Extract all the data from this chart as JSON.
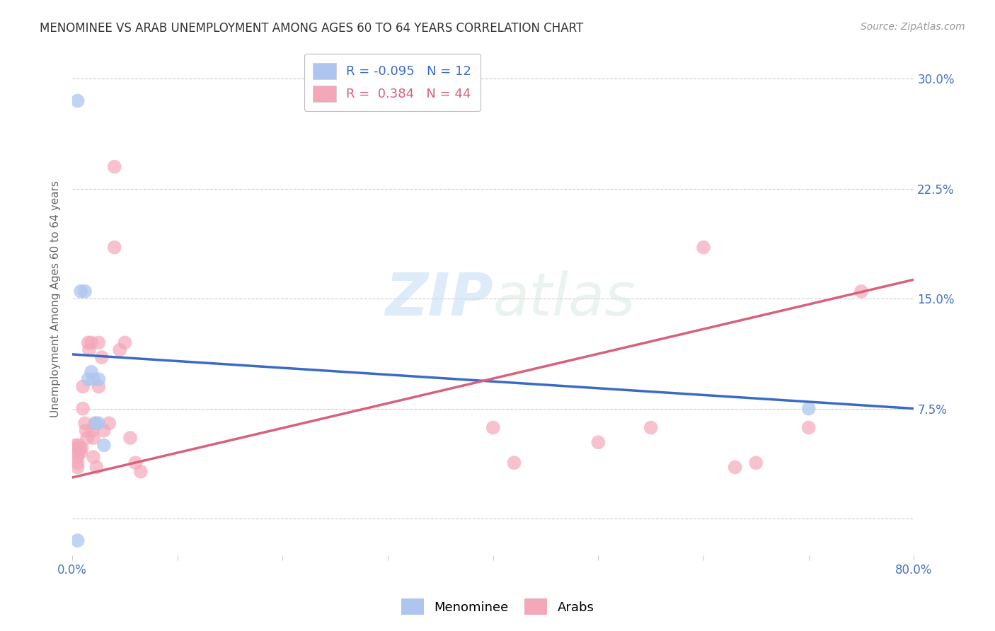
{
  "title": "MENOMINEE VS ARAB UNEMPLOYMENT AMONG AGES 60 TO 64 YEARS CORRELATION CHART",
  "source": "Source: ZipAtlas.com",
  "ylabel": "Unemployment Among Ages 60 to 64 years",
  "xlim": [
    0.0,
    0.8
  ],
  "ylim": [
    -0.025,
    0.325
  ],
  "menominee_R": "-0.095",
  "menominee_N": "12",
  "arab_R": "0.384",
  "arab_N": "44",
  "menominee_color": "#aec6ef",
  "arab_color": "#f4a7b9",
  "menominee_line_color": "#3a6bc4",
  "arab_line_color": "#d9607a",
  "watermark_zip": "ZIP",
  "watermark_atlas": "atlas",
  "menominee_points_x": [
    0.005,
    0.008,
    0.012,
    0.015,
    0.018,
    0.02,
    0.022,
    0.025,
    0.025,
    0.03,
    0.7,
    0.005
  ],
  "menominee_points_y": [
    0.285,
    0.155,
    0.155,
    0.095,
    0.1,
    0.095,
    0.065,
    0.065,
    0.095,
    0.05,
    0.075,
    -0.015
  ],
  "arab_points_x": [
    0.003,
    0.004,
    0.005,
    0.005,
    0.005,
    0.005,
    0.006,
    0.007,
    0.008,
    0.009,
    0.01,
    0.01,
    0.012,
    0.013,
    0.014,
    0.015,
    0.016,
    0.018,
    0.019,
    0.02,
    0.02,
    0.022,
    0.023,
    0.025,
    0.025,
    0.028,
    0.03,
    0.035,
    0.04,
    0.04,
    0.045,
    0.05,
    0.055,
    0.06,
    0.065,
    0.4,
    0.42,
    0.5,
    0.55,
    0.6,
    0.63,
    0.65,
    0.7,
    0.75
  ],
  "arab_points_y": [
    0.05,
    0.048,
    0.045,
    0.042,
    0.038,
    0.035,
    0.05,
    0.048,
    0.045,
    0.048,
    0.09,
    0.075,
    0.065,
    0.06,
    0.055,
    0.12,
    0.115,
    0.12,
    0.06,
    0.055,
    0.042,
    0.065,
    0.035,
    0.12,
    0.09,
    0.11,
    0.06,
    0.065,
    0.24,
    0.185,
    0.115,
    0.12,
    0.055,
    0.038,
    0.032,
    0.062,
    0.038,
    0.052,
    0.062,
    0.185,
    0.035,
    0.038,
    0.062,
    0.155
  ],
  "menominee_line_x0": 0.0,
  "menominee_line_y0": 0.112,
  "menominee_line_x1": 0.8,
  "menominee_line_y1": 0.075,
  "arab_line_x0": 0.0,
  "arab_line_y0": 0.028,
  "arab_line_x1": 0.8,
  "arab_line_y1": 0.163,
  "background_color": "#ffffff",
  "grid_color": "#cccccc",
  "title_color": "#333333",
  "axis_label_color": "#666666",
  "tick_label_color": "#4472c4",
  "legend_edge_color": "#bbbbbb",
  "ytick_positions": [
    0.0,
    0.075,
    0.15,
    0.225,
    0.3
  ],
  "ytick_labels": [
    "",
    "7.5%",
    "15.0%",
    "22.5%",
    "30.0%"
  ],
  "xtick_positions": [
    0.0,
    0.1,
    0.2,
    0.3,
    0.4,
    0.5,
    0.6,
    0.7,
    0.8
  ],
  "xtick_labels": [
    "0.0%",
    "",
    "",
    "",
    "",
    "",
    "",
    "",
    "80.0%"
  ]
}
